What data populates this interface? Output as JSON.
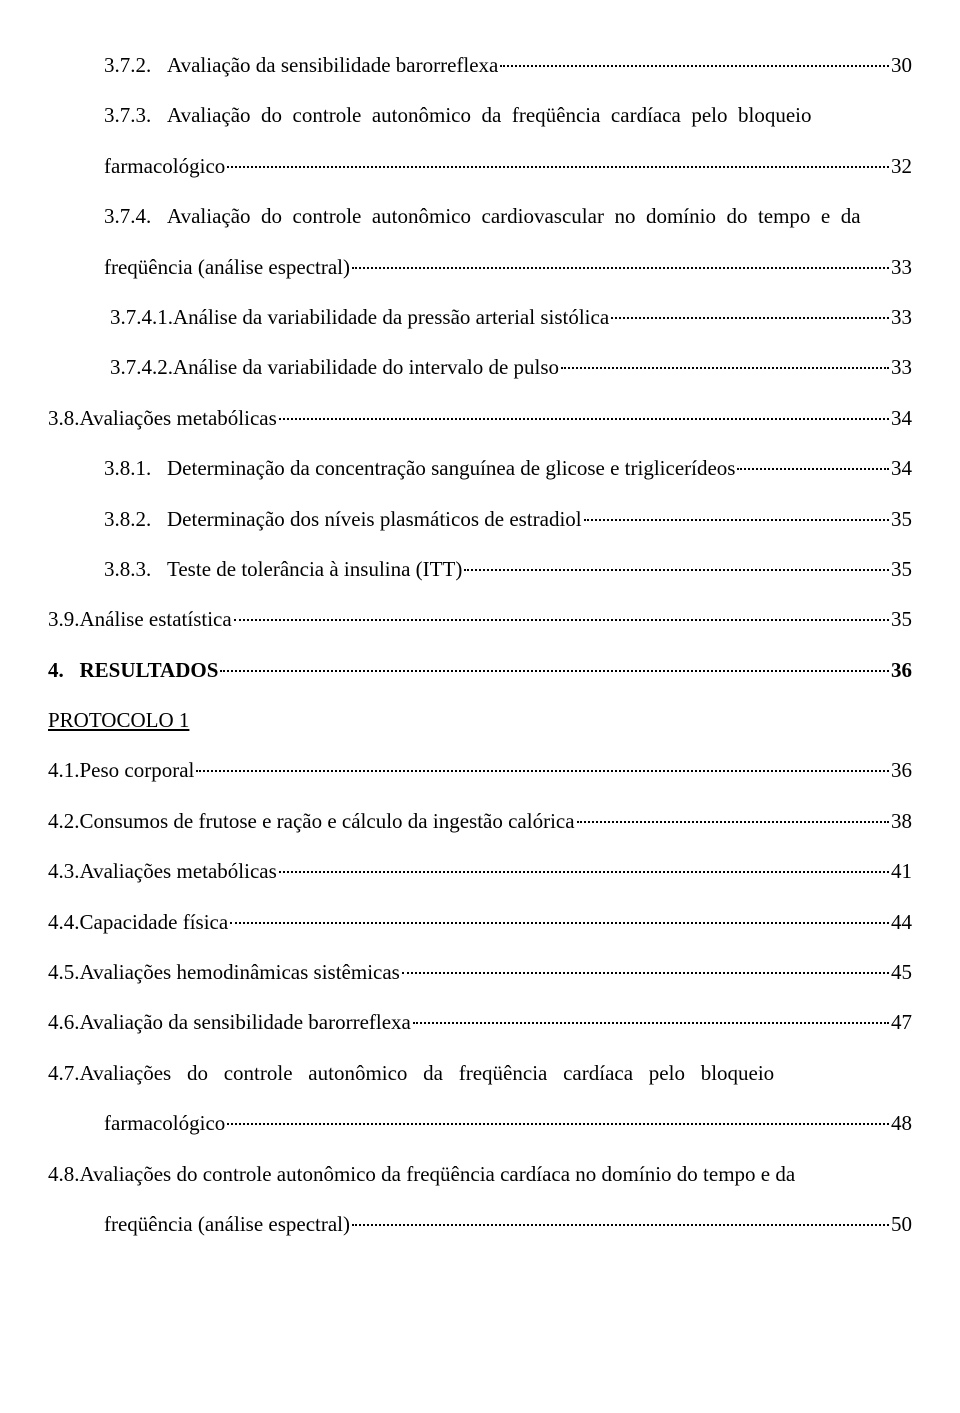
{
  "entries": [
    {
      "cls": "entry ind1",
      "lead": "3.7.2.   Avaliação da sensibilidade barorreflexa",
      "pg": "30"
    },
    {
      "cls": "entry ind1 justline",
      "lead": "3.7.3.   Avaliação  do  controle  autonômico  da  freqüência  cardíaca  pelo  bloqueio",
      "pg": ""
    },
    {
      "cls": "entry wrapbody",
      "lead": "farmacológico",
      "pg": "32"
    },
    {
      "cls": "entry ind1 justline",
      "lead": "3.7.4.   Avaliação  do  controle  autonômico  cardiovascular  no  domínio  do  tempo  e  da",
      "pg": ""
    },
    {
      "cls": "entry wrapbody",
      "lead": "freqüência (análise espectral)",
      "pg": "33"
    },
    {
      "cls": "entry ind2",
      "lead": "3.7.4.1.Análise da variabilidade da pressão arterial sistólica",
      "pg": "33"
    },
    {
      "cls": "entry ind2",
      "lead": "3.7.4.2.Análise da variabilidade do intervalo de pulso",
      "pg": "33"
    },
    {
      "cls": "entry",
      "lead": "3.8.Avaliações metabólicas",
      "pg": "34"
    },
    {
      "cls": "entry ind1",
      "lead": "3.8.1.   Determinação da concentração sanguínea de glicose e triglicerídeos",
      "pg": "34"
    },
    {
      "cls": "entry ind1",
      "lead": "3.8.2.   Determinação dos níveis plasmáticos de estradiol",
      "pg": "35"
    },
    {
      "cls": "entry ind1",
      "lead": "3.8.3.   Teste de tolerância à insulina (ITT)",
      "pg": "35"
    },
    {
      "cls": "entry",
      "lead": "3.9.Análise estatística",
      "pg": "35"
    },
    {
      "cls": "entry bold",
      "lead": "4.   RESULTADOS",
      "pg": "36"
    },
    {
      "cls": "underline",
      "lead": "PROTOCOLO 1",
      "pg": "",
      "plain": true
    },
    {
      "cls": "entry",
      "lead": "4.1.Peso corporal",
      "pg": "36"
    },
    {
      "cls": "entry",
      "lead": "4.2.Consumos de frutose e ração e cálculo da ingestão calórica",
      "pg": "38"
    },
    {
      "cls": "entry",
      "lead": "4.3.Avaliações metabólicas",
      "pg": "41"
    },
    {
      "cls": "entry",
      "lead": "4.4.Capacidade física",
      "pg": "44"
    },
    {
      "cls": "entry",
      "lead": "4.5.Avaliações hemodinâmicas sistêmicas",
      "pg": "45"
    },
    {
      "cls": "entry",
      "lead": "4.6.Avaliação da sensibilidade barorreflexa",
      "pg": "47"
    },
    {
      "cls": "entry justline",
      "lead": "4.7.Avaliações   do   controle   autonômico   da   freqüência   cardíaca   pelo   bloqueio",
      "pg": ""
    },
    {
      "cls": "entry wrapbody",
      "lead": "farmacológico",
      "pg": "48"
    },
    {
      "cls": "entry justline",
      "lead": "4.8.Avaliações do controle autonômico da freqüência cardíaca no domínio do tempo e da",
      "pg": ""
    },
    {
      "cls": "entry wrapbody",
      "lead": "freqüência (análise espectral)",
      "pg": "50"
    }
  ]
}
